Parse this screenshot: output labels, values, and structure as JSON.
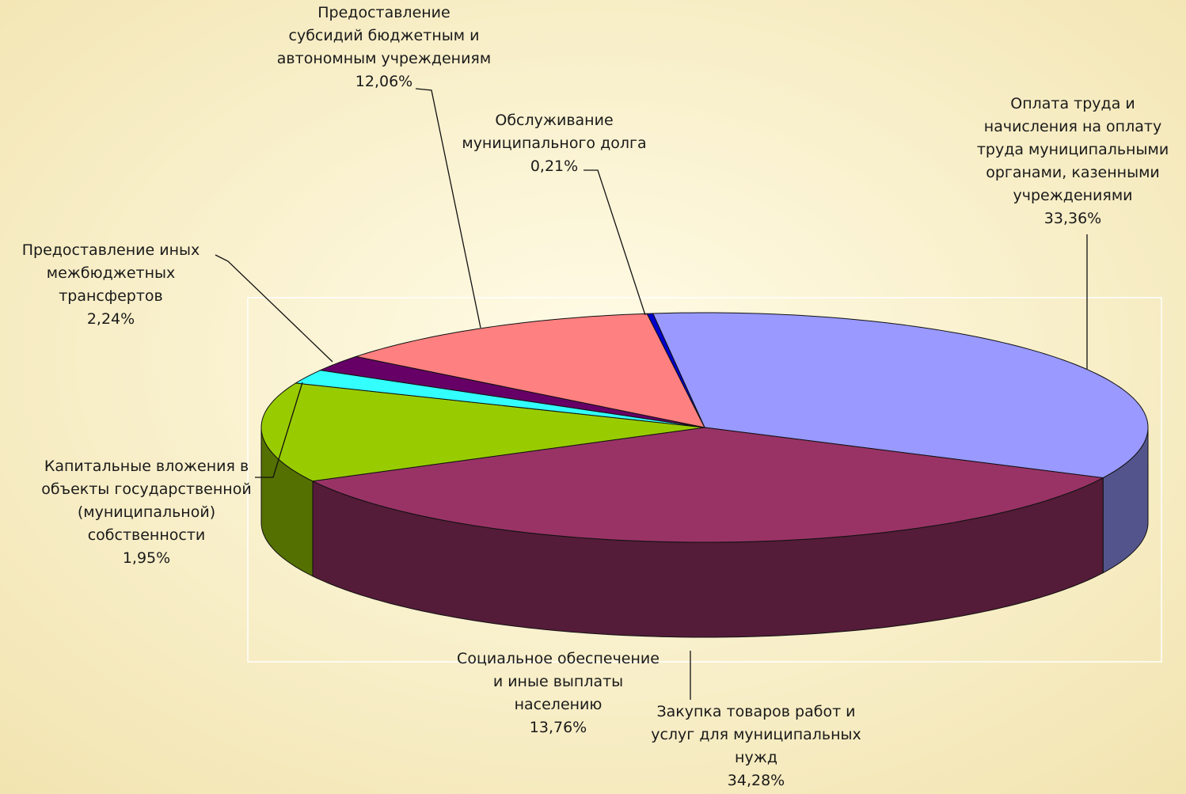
{
  "chart_data": {
    "type": "pie",
    "categories": [
      "Оплата труда  и\nначисления на оплату\nтруда  муниципальными\nорганами, казенными\nучреждениями",
      "Закупка товаров работ и\nуслуг  для муниципальных\nнужд",
      "Социальное обеспечение\nи иные выплаты\nнаселению",
      "Капитальные вложения в\nобъекты государственной\n(муниципальной)\nсобственности",
      "Предоставление иных\nмежбюджетных\nтрансфертов",
      "Предоставление\nсубсидий бюджетным и\nавтономным учреждениям",
      "Обслуживание\nмуниципального долга"
    ],
    "values": [
      33.36,
      34.28,
      13.76,
      1.95,
      2.24,
      12.06,
      0.21
    ],
    "value_labels": [
      "33,36%",
      "34,28%",
      "13,76%",
      "1,95%",
      "2,24%",
      "12,06%",
      "0,21%"
    ],
    "colors": [
      "#9999ff",
      "#993366",
      "#99cc00",
      "#33ffff",
      "#660066",
      "#ff8080",
      "#0000cc"
    ]
  }
}
